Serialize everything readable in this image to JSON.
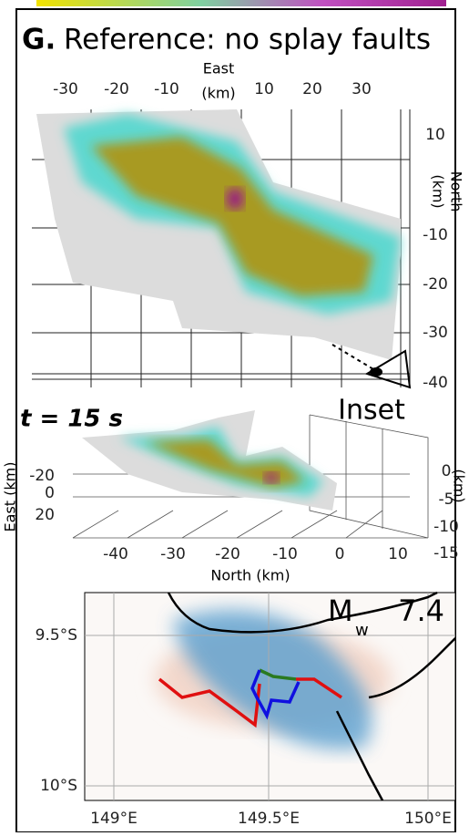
{
  "title_letter": "G.",
  "title": "Reference: no splay faults",
  "top_view": {
    "x_title": [
      "East",
      "(km)"
    ],
    "x_ticks": [
      -30,
      -20,
      -10,
      10,
      20,
      30
    ],
    "y_ticks": [
      10,
      -10,
      -20,
      -30,
      -40
    ],
    "y_title": [
      "North",
      "(km)"
    ],
    "inset_label": "Inset"
  },
  "time_label": "t = 15 s",
  "inset_view": {
    "east_title": "East (km)",
    "east_ticks": [
      -20,
      0,
      20
    ],
    "north_ticks": [
      -40,
      -30,
      -20,
      -10,
      0,
      10
    ],
    "north_title": "North (km)",
    "depth_ticks": [
      0,
      -5,
      -10,
      -15
    ],
    "depth_title": "(km)"
  },
  "map": {
    "magnitude_label": "M",
    "magnitude_sub": "w",
    "magnitude": 7.4,
    "lat_ticks": [
      "9.5°S",
      "10°S"
    ],
    "lon_ticks": [
      "149°E",
      "149.5°E",
      "150°E"
    ]
  }
}
